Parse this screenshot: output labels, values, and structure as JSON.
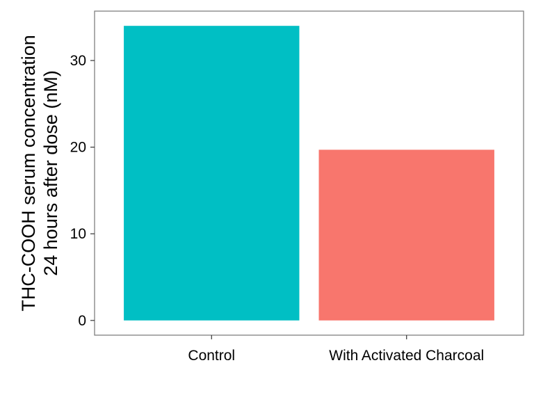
{
  "chart_data": {
    "type": "bar",
    "categories": [
      "Control",
      "With Activated Charcoal"
    ],
    "values": [
      34.0,
      19.7
    ],
    "colors": [
      "#00BFC4",
      "#F8766D"
    ],
    "ylabel_lines": [
      "THC-COOH serum concentration",
      "24 hours after dose (nM)"
    ],
    "xlabel": "",
    "yticks": [
      0,
      10,
      20,
      30
    ],
    "ylim": [
      -1.7,
      35.7
    ],
    "grid": false,
    "legend": "none",
    "frame_color": "#7f7f7f"
  }
}
